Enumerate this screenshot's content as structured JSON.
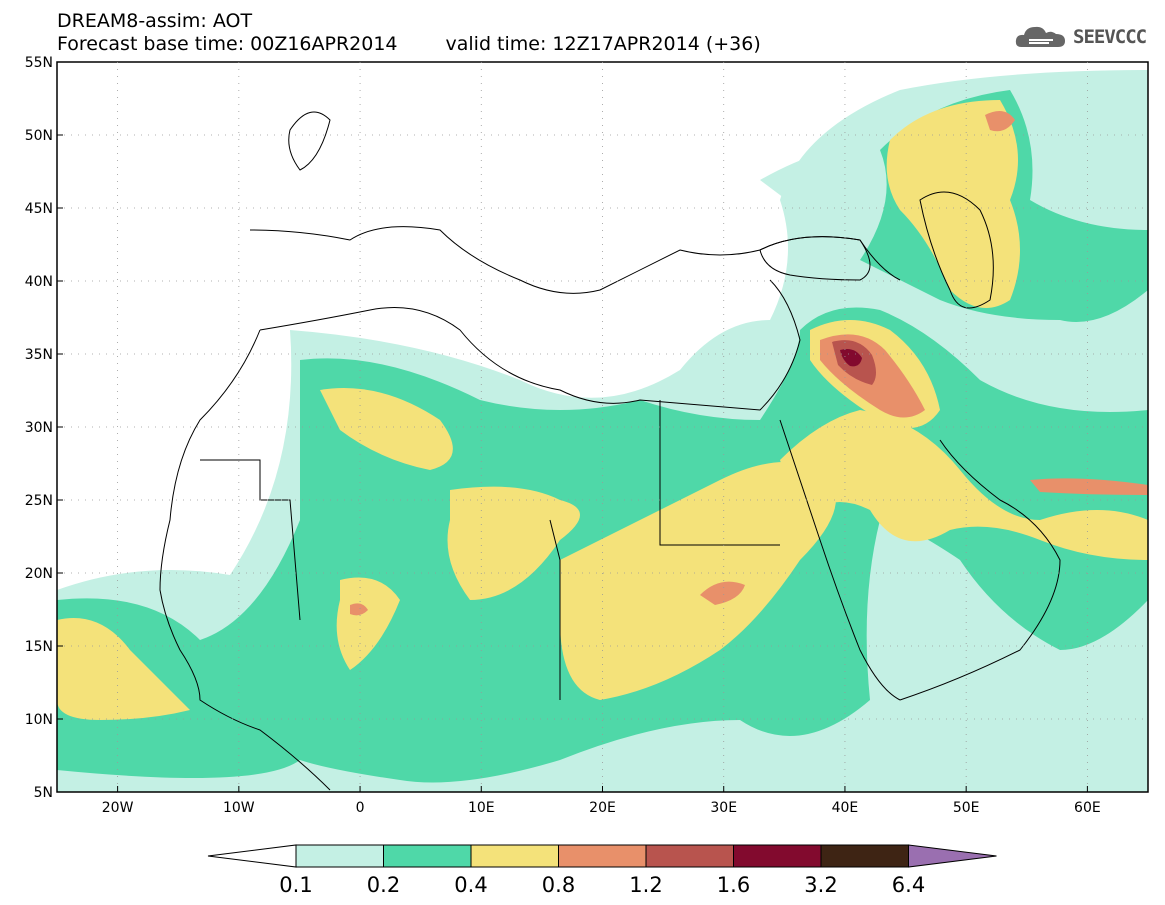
{
  "header": {
    "title_line1": "DREAM8-assim: AOT",
    "base_time": "Forecast base time: 00Z16APR2014",
    "valid_time": "valid time: 12Z17APR2014 (+36)"
  },
  "logo": {
    "text": "SEEVCCC",
    "icon": "cloud-icon"
  },
  "map": {
    "lon_range": [
      -25,
      65
    ],
    "lat_range": [
      5,
      55
    ],
    "lat_labels": [
      "5N",
      "10N",
      "15N",
      "20N",
      "25N",
      "30N",
      "35N",
      "40N",
      "45N",
      "50N",
      "55N"
    ],
    "lon_labels": [
      "20W",
      "10W",
      "0",
      "10E",
      "20E",
      "30E",
      "40E",
      "50E",
      "60E"
    ]
  },
  "colorbar": {
    "labels": [
      "0.1",
      "0.2",
      "0.4",
      "0.8",
      "1.2",
      "1.6",
      "3.2",
      "6.4"
    ],
    "colors": [
      "#ffffff",
      "#c4f0e4",
      "#4fd8a8",
      "#f4e27a",
      "#e8906a",
      "#b8544e",
      "#820a2e",
      "#3e2414",
      "#9a6fb0"
    ]
  },
  "palette": {
    "very_light": "#c4f0e4",
    "green": "#4fd8a8",
    "yellow": "#f4e27a",
    "orange": "#e8906a",
    "brown": "#b8544e",
    "maroon": "#820a2e"
  }
}
